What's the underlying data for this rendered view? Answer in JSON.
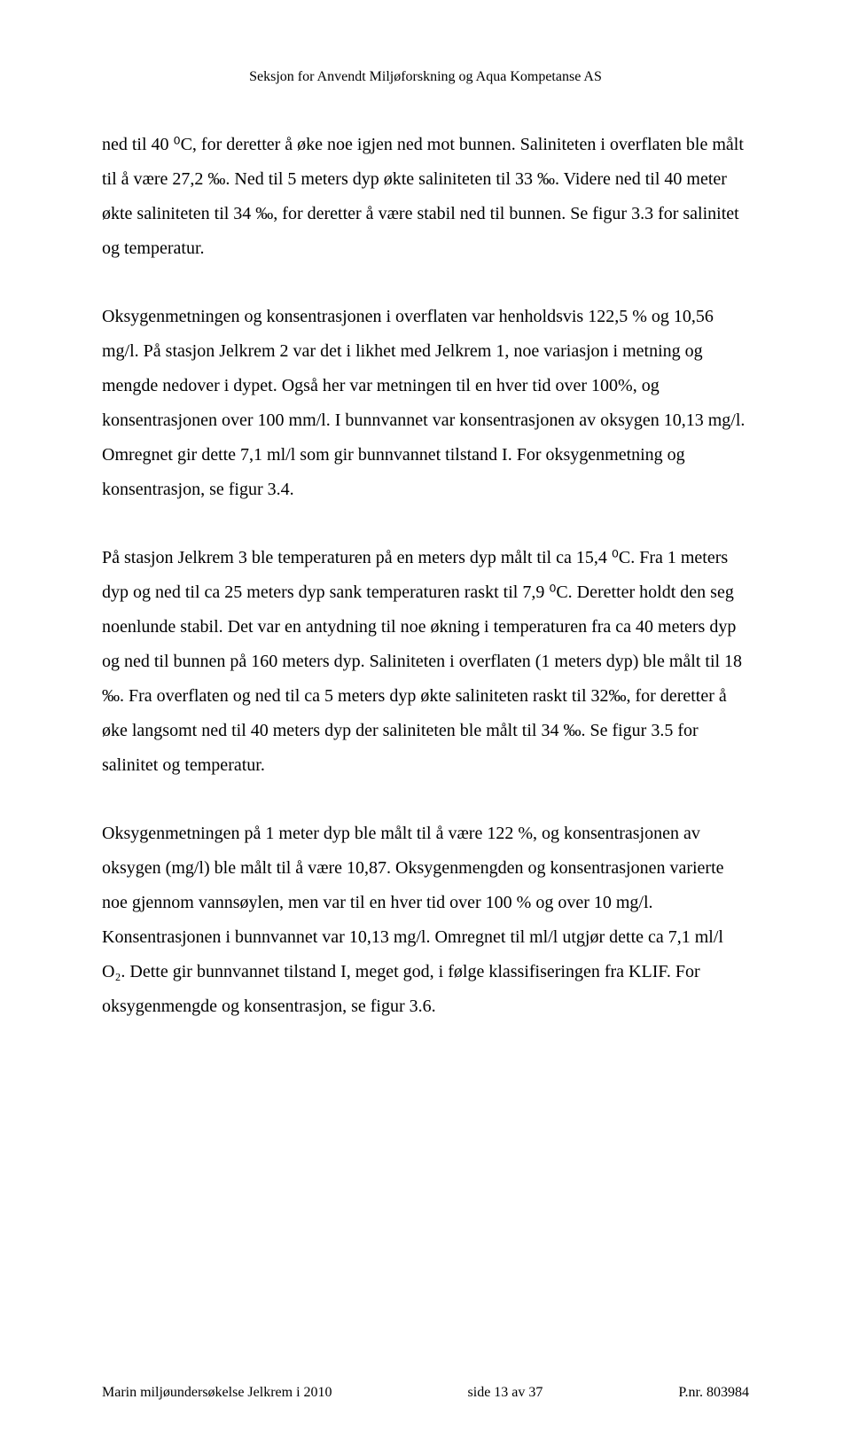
{
  "header": {
    "text": "Seksjon for Anvendt Miljøforskning og Aqua Kompetanse AS"
  },
  "paragraphs": {
    "p1": "ned til 40 ⁰C, for deretter å øke noe igjen ned mot bunnen. Saliniteten i overflaten ble målt til å være 27,2 ‰. Ned til 5 meters dyp økte saliniteten til 33 ‰. Videre ned til 40 meter økte saliniteten til 34 ‰, for deretter å være stabil ned til bunnen. Se figur 3.3 for salinitet og temperatur.",
    "p2": "Oksygenmetningen og konsentrasjonen i overflaten var henholdsvis 122,5 % og 10,56 mg/l. På stasjon Jelkrem 2 var det i likhet med Jelkrem 1, noe variasjon i metning og mengde nedover i dypet. Også her var metningen til en hver tid over 100%, og konsentrasjonen over 100 mm/l. I bunnvannet var konsentrasjonen av oksygen 10,13 mg/l. Omregnet gir dette 7,1 ml/l som gir bunnvannet tilstand I. For oksygenmetning og konsentrasjon, se figur 3.4.",
    "p3": "På stasjon Jelkrem 3 ble temperaturen på en meters dyp målt til ca 15,4 ⁰C. Fra 1 meters dyp og ned til ca 25 meters dyp sank temperaturen raskt til 7,9 ⁰C. Deretter holdt den seg noenlunde stabil. Det var en antydning til noe økning i temperaturen fra ca 40 meters dyp og ned til bunnen på 160 meters dyp. Saliniteten i overflaten (1 meters dyp) ble målt til 18 ‰. Fra overflaten og ned til ca 5 meters dyp økte saliniteten raskt til 32‰, for deretter å øke langsomt ned til 40 meters dyp der saliniteten ble målt til 34 ‰. Se figur 3.5 for salinitet og temperatur.",
    "p4": "Oksygenmetningen på 1 meter dyp ble målt til å være 122 %, og konsentrasjonen av oksygen (mg/l) ble målt til å være 10,87. Oksygenmengden og konsentrasjonen varierte noe gjennom vannsøylen, men var til en hver tid over 100 % og over 10 mg/l. Konsentrasjonen i bunnvannet var 10,13 mg/l. Omregnet til ml/l utgjør dette ca 7,1 ml/l O₂. Dette gir bunnvannet tilstand I, meget god, i følge klassifiseringen fra KLIF. For oksygenmengde og konsentrasjon, se figur 3.6."
  },
  "footer": {
    "left": "Marin miljøundersøkelse Jelkrem i 2010",
    "center": "side 13 av 37",
    "right": "P.nr. 803984"
  }
}
